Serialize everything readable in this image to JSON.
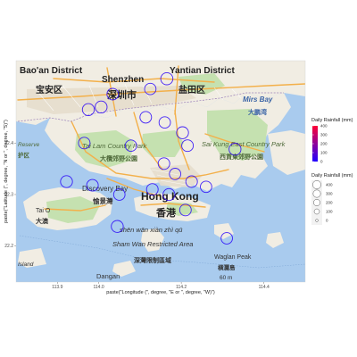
{
  "chart_data": {
    "type": "scatter",
    "x_axis": {
      "title": "paste(\"Longitude (\", degree, \"E or \", degree, \"W)\")",
      "ticks": [
        113.9,
        114.0,
        114.2,
        114.4
      ],
      "tick_labels": [
        "113.9",
        "114.0",
        "114.2",
        "114.4"
      ],
      "range": [
        113.8,
        114.5
      ]
    },
    "y_axis": {
      "title": "paste(\"Latitude (\", degree, \"N or \", degree, \"S)\")",
      "ticks": [
        22.2,
        22.3,
        22.4
      ],
      "tick_labels": [
        "22.2",
        "22.3",
        "22.4"
      ],
      "range": [
        22.13,
        22.56
      ]
    },
    "legend_color": {
      "title": "Daily Rainfall (mm)",
      "ticks": [
        400,
        300,
        200,
        100,
        0
      ],
      "low_color": "#1f00ff",
      "high_color": "#ff0033"
    },
    "legend_size": {
      "title": "Daily Rainfall (mm)",
      "items": [
        400,
        300,
        200,
        100,
        0
      ]
    },
    "points": [
      {
        "x": 114.165,
        "y": 22.525,
        "value": 20
      },
      {
        "x": 113.975,
        "y": 22.465,
        "value": 15
      },
      {
        "x": 114.006,
        "y": 22.47,
        "value": 15
      },
      {
        "x": 114.034,
        "y": 22.495,
        "value": 12
      },
      {
        "x": 114.125,
        "y": 22.505,
        "value": 10
      },
      {
        "x": 114.114,
        "y": 22.45,
        "value": 12
      },
      {
        "x": 114.203,
        "y": 22.42,
        "value": 15
      },
      {
        "x": 114.16,
        "y": 22.44,
        "value": 10
      },
      {
        "x": 113.965,
        "y": 22.4,
        "value": 12
      },
      {
        "x": 114.078,
        "y": 22.395,
        "value": 10
      },
      {
        "x": 114.215,
        "y": 22.395,
        "value": 12
      },
      {
        "x": 114.33,
        "y": 22.388,
        "value": 15
      },
      {
        "x": 114.158,
        "y": 22.36,
        "value": 12
      },
      {
        "x": 114.185,
        "y": 22.34,
        "value": 10
      },
      {
        "x": 114.225,
        "y": 22.325,
        "value": 12
      },
      {
        "x": 114.26,
        "y": 22.315,
        "value": 10
      },
      {
        "x": 113.922,
        "y": 22.325,
        "value": 15
      },
      {
        "x": 113.985,
        "y": 22.318,
        "value": 12
      },
      {
        "x": 114.05,
        "y": 22.3,
        "value": 10
      },
      {
        "x": 114.13,
        "y": 22.31,
        "value": 12
      },
      {
        "x": 114.17,
        "y": 22.3,
        "value": 15
      },
      {
        "x": 114.21,
        "y": 22.27,
        "value": 12
      },
      {
        "x": 114.045,
        "y": 22.238,
        "value": 15
      },
      {
        "x": 114.31,
        "y": 22.215,
        "value": 10
      }
    ]
  },
  "map": {
    "labels": [
      {
        "text": "Bao'an District",
        "lang": "en"
      },
      {
        "text": "Shenzhen",
        "lang": "en"
      },
      {
        "text": "Yantian District",
        "lang": "en"
      },
      {
        "text": "宝安区",
        "lang": "cn"
      },
      {
        "text": "深圳市",
        "lang": "cn"
      },
      {
        "text": "盐田区",
        "lang": "cn"
      },
      {
        "text": "Mirs Bay",
        "lang": "en"
      },
      {
        "text": "大鹏湾",
        "lang": "cn"
      },
      {
        "text": "Tai Lam Country Park",
        "lang": "en"
      },
      {
        "text": "大欖郊野公園",
        "lang": "cn"
      },
      {
        "text": "Sai Kung East Country Park",
        "lang": "en"
      },
      {
        "text": "西貢東郊野公園",
        "lang": "cn"
      },
      {
        "text": "Discovery Bay",
        "lang": "en"
      },
      {
        "text": "愉景灣",
        "lang": "cn"
      },
      {
        "text": "Hong Kong",
        "lang": "en"
      },
      {
        "text": "香港",
        "lang": "cn"
      },
      {
        "text": "shēn wān xiàn zhì qū",
        "lang": "en"
      },
      {
        "text": "Sham Wan Restricted Area",
        "lang": "en"
      },
      {
        "text": "深灣限制區域",
        "lang": "cn"
      },
      {
        "text": "Tai O",
        "lang": "en"
      },
      {
        "text": "大澳",
        "lang": "cn"
      },
      {
        "text": "Dangan",
        "lang": "en"
      },
      {
        "text": "Island",
        "lang": "en"
      },
      {
        "text": "Reserve",
        "lang": "en"
      },
      {
        "text": "护区",
        "lang": "cn"
      },
      {
        "text": "Waglan Peak",
        "lang": "en"
      },
      {
        "text": "横瀾島",
        "lang": "cn"
      },
      {
        "text": "60 m",
        "lang": "en"
      }
    ]
  },
  "colors": {
    "water": "#a9cbee",
    "land": "#f1ede3",
    "park": "#c5e1b0",
    "urban": "#e8e2d4",
    "road": "#f3b04a",
    "point_stroke": "#4a3cff"
  }
}
